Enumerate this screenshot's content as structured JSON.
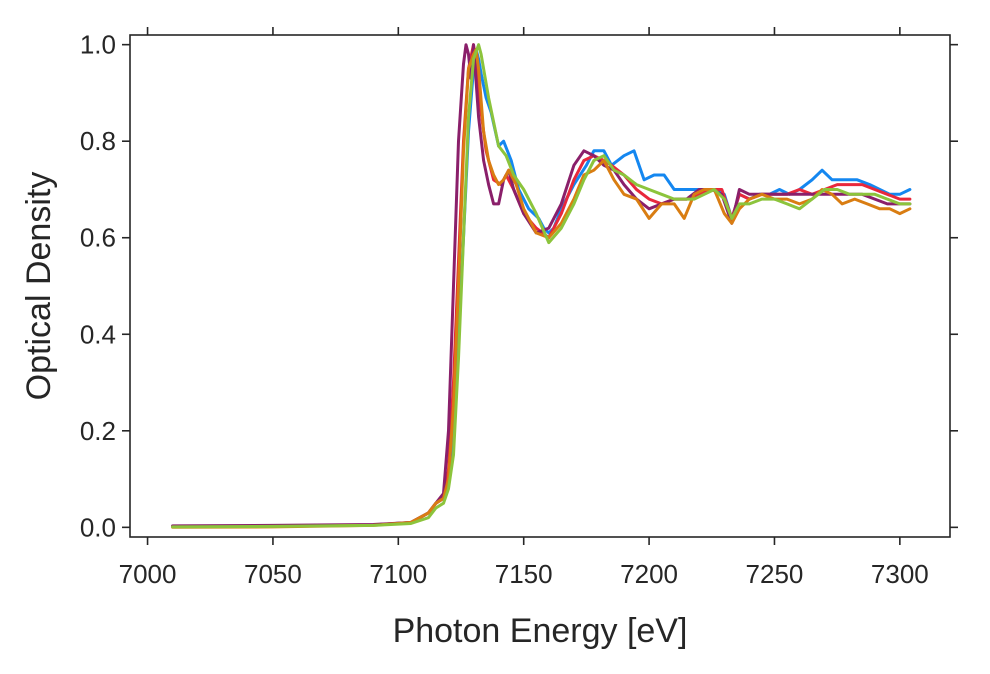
{
  "chart_data": {
    "type": "line",
    "title": "",
    "xlabel": "Photon Energy [eV]",
    "ylabel": "Optical Density",
    "xlim": [
      6993,
      7320
    ],
    "ylim": [
      -0.02,
      1.02
    ],
    "xticks": [
      7000,
      7050,
      7100,
      7150,
      7200,
      7250,
      7300
    ],
    "yticks": [
      0.0,
      0.2,
      0.4,
      0.6,
      0.8,
      1.0
    ],
    "xtick_labels": [
      "7000",
      "7050",
      "7100",
      "7150",
      "7200",
      "7250",
      "7300"
    ],
    "ytick_labels": [
      "0.0",
      "0.2",
      "0.4",
      "0.6",
      "0.8",
      "1.0"
    ],
    "grid": false,
    "legend": "none",
    "series": [
      {
        "name": "blue",
        "color": "#1487f0",
        "x": [
          7010,
          7050,
          7090,
          7105,
          7112,
          7115,
          7118,
          7120,
          7122,
          7124,
          7126,
          7128,
          7130,
          7131,
          7132,
          7133,
          7135,
          7137,
          7140,
          7142,
          7145,
          7148,
          7152,
          7156,
          7158,
          7160,
          7162,
          7165,
          7170,
          7175,
          7178,
          7182,
          7185,
          7190,
          7194,
          7198,
          7202,
          7206,
          7210,
          7214,
          7218,
          7222,
          7226,
          7230,
          7233,
          7236,
          7240,
          7244,
          7248,
          7252,
          7256,
          7260,
          7265,
          7269,
          7273,
          7278,
          7283,
          7288,
          7292,
          7296,
          7300,
          7304
        ],
        "y": [
          0.002,
          0.003,
          0.005,
          0.01,
          0.03,
          0.05,
          0.06,
          0.1,
          0.2,
          0.4,
          0.6,
          0.82,
          0.95,
          0.99,
          0.97,
          0.94,
          0.89,
          0.86,
          0.79,
          0.8,
          0.76,
          0.7,
          0.66,
          0.64,
          0.62,
          0.61,
          0.62,
          0.66,
          0.71,
          0.75,
          0.78,
          0.78,
          0.75,
          0.77,
          0.78,
          0.72,
          0.73,
          0.73,
          0.7,
          0.7,
          0.7,
          0.7,
          0.7,
          0.69,
          0.64,
          0.69,
          0.68,
          0.69,
          0.69,
          0.7,
          0.69,
          0.7,
          0.72,
          0.74,
          0.72,
          0.72,
          0.72,
          0.71,
          0.7,
          0.69,
          0.69,
          0.7
        ]
      },
      {
        "name": "red",
        "color": "#e8283c",
        "x": [
          7010,
          7050,
          7090,
          7105,
          7112,
          7115,
          7118,
          7120,
          7122,
          7124,
          7126,
          7128,
          7130,
          7131,
          7133,
          7135,
          7138,
          7141,
          7143,
          7146,
          7150,
          7155,
          7160,
          7165,
          7170,
          7174,
          7178,
          7182,
          7185,
          7190,
          7195,
          7200,
          7205,
          7210,
          7215,
          7220,
          7225,
          7229,
          7233,
          7236,
          7240,
          7245,
          7250,
          7255,
          7260,
          7265,
          7270,
          7275,
          7280,
          7285,
          7290,
          7295,
          7300,
          7304
        ],
        "y": [
          0.002,
          0.003,
          0.005,
          0.01,
          0.03,
          0.05,
          0.06,
          0.12,
          0.3,
          0.55,
          0.8,
          0.95,
          1.0,
          0.96,
          0.86,
          0.78,
          0.72,
          0.71,
          0.73,
          0.7,
          0.65,
          0.62,
          0.6,
          0.65,
          0.72,
          0.76,
          0.77,
          0.76,
          0.75,
          0.73,
          0.7,
          0.68,
          0.67,
          0.68,
          0.68,
          0.69,
          0.7,
          0.7,
          0.64,
          0.69,
          0.68,
          0.69,
          0.69,
          0.69,
          0.7,
          0.69,
          0.7,
          0.71,
          0.71,
          0.71,
          0.7,
          0.69,
          0.68,
          0.68
        ]
      },
      {
        "name": "purple",
        "color": "#8a1f6a",
        "x": [
          7010,
          7050,
          7090,
          7105,
          7112,
          7115,
          7118,
          7120,
          7122,
          7124,
          7126,
          7127,
          7128,
          7129,
          7130,
          7132,
          7134,
          7136,
          7138,
          7140,
          7142,
          7144,
          7146,
          7150,
          7155,
          7160,
          7165,
          7170,
          7174,
          7178,
          7182,
          7186,
          7190,
          7195,
          7200,
          7205,
          7210,
          7215,
          7220,
          7225,
          7229,
          7233,
          7236,
          7240,
          7245,
          7250,
          7255,
          7260,
          7265,
          7270,
          7275,
          7280,
          7285,
          7290,
          7295,
          7300,
          7304
        ],
        "y": [
          0.003,
          0.004,
          0.006,
          0.01,
          0.03,
          0.05,
          0.07,
          0.2,
          0.5,
          0.8,
          0.96,
          1.0,
          0.98,
          0.93,
          1.0,
          0.85,
          0.76,
          0.71,
          0.67,
          0.67,
          0.72,
          0.74,
          0.7,
          0.65,
          0.61,
          0.62,
          0.67,
          0.75,
          0.78,
          0.77,
          0.75,
          0.74,
          0.71,
          0.68,
          0.66,
          0.67,
          0.68,
          0.68,
          0.7,
          0.7,
          0.69,
          0.63,
          0.7,
          0.69,
          0.69,
          0.69,
          0.69,
          0.69,
          0.69,
          0.69,
          0.69,
          0.69,
          0.69,
          0.68,
          0.67,
          0.67,
          0.67
        ]
      },
      {
        "name": "orange",
        "color": "#d97d12",
        "x": [
          7010,
          7050,
          7090,
          7105,
          7112,
          7115,
          7118,
          7120,
          7122,
          7124,
          7126,
          7128,
          7130,
          7131,
          7132,
          7134,
          7136,
          7138,
          7140,
          7142,
          7144,
          7147,
          7150,
          7155,
          7160,
          7165,
          7170,
          7174,
          7178,
          7182,
          7186,
          7190,
          7195,
          7200,
          7205,
          7210,
          7214,
          7218,
          7222,
          7226,
          7230,
          7233,
          7236,
          7240,
          7245,
          7250,
          7255,
          7260,
          7265,
          7269,
          7273,
          7277,
          7282,
          7287,
          7292,
          7296,
          7300,
          7304
        ],
        "y": [
          0.0,
          0.001,
          0.004,
          0.01,
          0.03,
          0.05,
          0.06,
          0.1,
          0.25,
          0.5,
          0.78,
          0.95,
          0.98,
          0.99,
          0.95,
          0.82,
          0.76,
          0.73,
          0.71,
          0.72,
          0.74,
          0.71,
          0.66,
          0.61,
          0.6,
          0.63,
          0.68,
          0.73,
          0.74,
          0.76,
          0.72,
          0.69,
          0.68,
          0.64,
          0.67,
          0.67,
          0.64,
          0.69,
          0.7,
          0.7,
          0.65,
          0.63,
          0.66,
          0.68,
          0.69,
          0.68,
          0.68,
          0.67,
          0.68,
          0.7,
          0.69,
          0.67,
          0.68,
          0.67,
          0.66,
          0.66,
          0.65,
          0.66
        ]
      },
      {
        "name": "green",
        "color": "#8cc43c",
        "x": [
          7010,
          7050,
          7090,
          7105,
          7112,
          7115,
          7118,
          7120,
          7122,
          7124,
          7126,
          7128,
          7130,
          7132,
          7133,
          7134,
          7136,
          7138,
          7140,
          7143,
          7146,
          7150,
          7155,
          7160,
          7165,
          7170,
          7174,
          7178,
          7182,
          7186,
          7190,
          7195,
          7200,
          7205,
          7210,
          7214,
          7218,
          7222,
          7226,
          7230,
          7233,
          7236,
          7240,
          7245,
          7250,
          7255,
          7260,
          7265,
          7270,
          7275,
          7280,
          7285,
          7290,
          7295,
          7300,
          7304
        ],
        "y": [
          0.001,
          0.002,
          0.004,
          0.008,
          0.02,
          0.04,
          0.05,
          0.08,
          0.15,
          0.35,
          0.6,
          0.85,
          0.97,
          1.0,
          0.98,
          0.95,
          0.89,
          0.84,
          0.79,
          0.77,
          0.73,
          0.7,
          0.65,
          0.59,
          0.62,
          0.67,
          0.72,
          0.76,
          0.77,
          0.74,
          0.73,
          0.71,
          0.7,
          0.69,
          0.68,
          0.68,
          0.68,
          0.69,
          0.7,
          0.68,
          0.64,
          0.67,
          0.67,
          0.68,
          0.68,
          0.67,
          0.66,
          0.68,
          0.7,
          0.7,
          0.69,
          0.69,
          0.69,
          0.68,
          0.67,
          0.67
        ]
      }
    ]
  }
}
